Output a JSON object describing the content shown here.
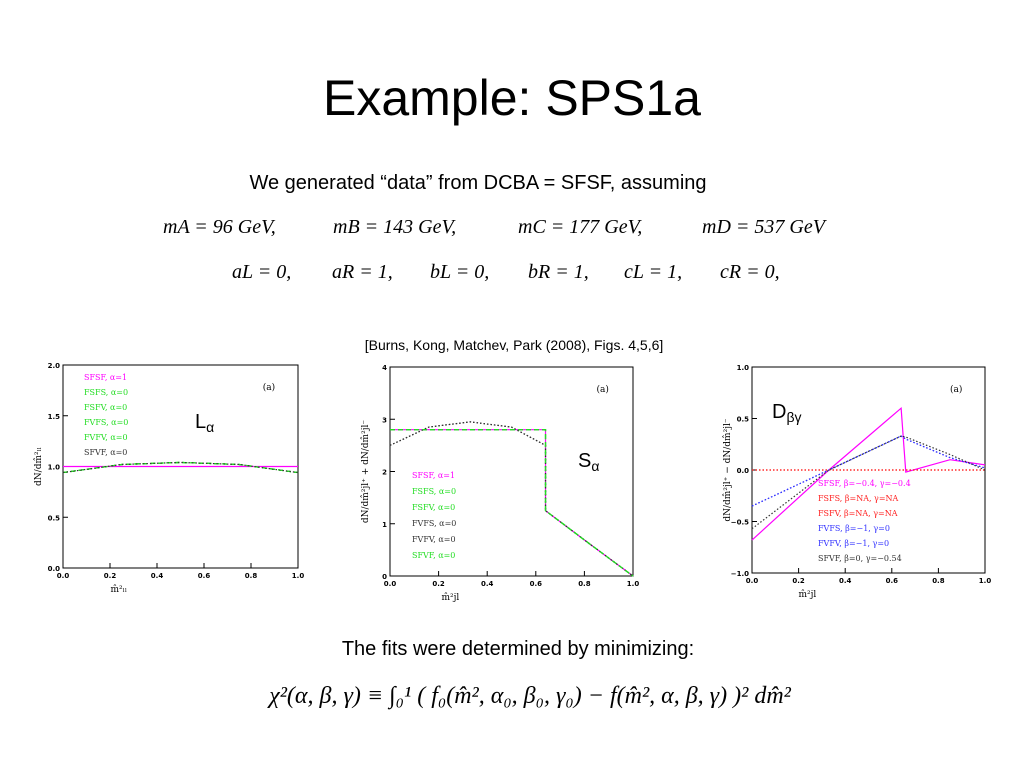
{
  "title": "Example:  SPS1a",
  "intro": "We generated “data” from DCBA = SFSF, assuming",
  "mass_line": [
    "mA = 96 GeV,",
    "mB = 143 GeV,",
    "mC = 177 GeV,",
    "mD = 537 GeV"
  ],
  "coupling_line": [
    "aL = 0,",
    "aR = 1,",
    "bL = 0,",
    "bR = 1,",
    "cL = 1,",
    "cR = 0,"
  ],
  "citation": "[Burns, Kong, Matchev, Park (2008), Figs. 4,5,6]",
  "charts": [
    {
      "type": "line",
      "panel_label": "(a)",
      "overlay_label": {
        "main": "L",
        "sub": "α"
      },
      "xlabel": "m̂²ₗₗ",
      "ylabel": "dN/dm̂²ₗₗ",
      "xlim": [
        0,
        1
      ],
      "xticks": [
        {
          "value": 0,
          "label": "0.0"
        },
        {
          "value": 0.2,
          "label": "0.2"
        },
        {
          "value": 0.4,
          "label": "0.4"
        },
        {
          "value": 0.6,
          "label": "0.6"
        },
        {
          "value": 0.8,
          "label": "0.8"
        },
        {
          "value": 1,
          "label": "1.0"
        }
      ],
      "ylim": [
        0,
        2
      ],
      "yticks": [
        {
          "value": 0,
          "label": "0.0"
        },
        {
          "value": 0.5,
          "label": "0.5"
        },
        {
          "value": 1,
          "label": "1.0"
        },
        {
          "value": 1.5,
          "label": "1.5"
        },
        {
          "value": 2,
          "label": "2.0"
        }
      ],
      "x": [
        0,
        0.25,
        0.5,
        0.75,
        1
      ],
      "series": [
        {
          "name": "SFSF, α=1",
          "color": "#ff00ff",
          "values": [
            1,
            1,
            1,
            1,
            1
          ]
        },
        {
          "name": "FSFS, α=0",
          "color": "#22dd22",
          "style": "dashed",
          "values": [
            0.94,
            1.02,
            1.04,
            1.02,
            0.94
          ]
        },
        {
          "name": "FSFV, α=0",
          "color": "#22dd22",
          "style": "dashed",
          "values": [
            0.94,
            1.02,
            1.04,
            1.02,
            0.94
          ]
        },
        {
          "name": "FVFS, α=0",
          "color": "#22dd22",
          "style": "dashed",
          "values": [
            0.94,
            1.02,
            1.04,
            1.02,
            0.94
          ]
        },
        {
          "name": "FVFV, α=0",
          "color": "#22dd22",
          "style": "dashed",
          "values": [
            0.94,
            1.02,
            1.04,
            1.02,
            0.94
          ]
        },
        {
          "name": "SFVF, α=0",
          "color": "#333333",
          "style": "dotted",
          "values": [
            0.94,
            1.02,
            1.04,
            1.02,
            0.94
          ]
        }
      ]
    },
    {
      "type": "line",
      "panel_label": "(a)",
      "overlay_label": {
        "main": "S",
        "sub": "α"
      },
      "xlabel": "m̂²jl",
      "ylabel": "dN/dm̂²jl⁺ + dN/dm̂²jl⁻",
      "xlim": [
        0,
        1
      ],
      "xticks": [
        {
          "value": 0,
          "label": "0.0"
        },
        {
          "value": 0.2,
          "label": "0.2"
        },
        {
          "value": 0.4,
          "label": "0.4"
        },
        {
          "value": 0.6,
          "label": "0.6"
        },
        {
          "value": 0.8,
          "label": "0.8"
        },
        {
          "value": 1,
          "label": "1.0"
        }
      ],
      "ylim": [
        0,
        4
      ],
      "yticks": [
        0,
        1,
        2,
        3,
        4
      ],
      "x": [
        0,
        0.16,
        0.33,
        0.5,
        0.64,
        0.64,
        0.82,
        1
      ],
      "series": [
        {
          "name": "SFSF, α=1",
          "color": "#ff00ff",
          "values": [
            2.8,
            2.8,
            2.8,
            2.8,
            2.8,
            1.25,
            0.62,
            0
          ]
        },
        {
          "name": "FSFS, α=0",
          "color": "#22dd22",
          "style": "dashed",
          "values": [
            2.8,
            2.8,
            2.8,
            2.8,
            2.8,
            1.25,
            0.62,
            0
          ]
        },
        {
          "name": "FSFV, α=0",
          "color": "#22dd22",
          "style": "dashed",
          "values": [
            2.8,
            2.8,
            2.8,
            2.8,
            2.8,
            1.25,
            0.62,
            0
          ]
        },
        {
          "name": "FVFS, α=0",
          "color": "#333333",
          "style": "dotted",
          "values": [
            2.5,
            2.85,
            2.95,
            2.85,
            2.5,
            1.25,
            0.62,
            0
          ]
        },
        {
          "name": "FVFV, α=0",
          "color": "#333333",
          "style": "dotted",
          "values": [
            2.5,
            2.85,
            2.95,
            2.85,
            2.5,
            1.25,
            0.62,
            0
          ]
        },
        {
          "name": "SFVF, α=0",
          "color": "#22dd22",
          "style": "dashed",
          "values": [
            2.8,
            2.8,
            2.8,
            2.8,
            2.8,
            1.25,
            0.62,
            0
          ]
        }
      ]
    },
    {
      "type": "line",
      "panel_label": "(a)",
      "overlay_label": {
        "main": "D",
        "sub": "βγ"
      },
      "xlabel": "m̂²jl",
      "ylabel": "dN/dm̂²jl⁺ − dN/dm̂²jl⁻",
      "xlim": [
        0,
        1
      ],
      "xticks": [
        {
          "value": 0,
          "label": "0.0"
        },
        {
          "value": 0.2,
          "label": "0.2"
        },
        {
          "value": 0.4,
          "label": "0.4"
        },
        {
          "value": 0.6,
          "label": "0.6"
        },
        {
          "value": 0.8,
          "label": "0.8"
        },
        {
          "value": 1,
          "label": "1.0"
        }
      ],
      "ylim": [
        -1,
        1
      ],
      "yticks": [
        {
          "value": -1,
          "label": "−1.0"
        },
        {
          "value": -0.5,
          "label": "−0.5"
        },
        {
          "value": 0,
          "label": "0.0"
        },
        {
          "value": 0.5,
          "label": "0.5"
        },
        {
          "value": 1,
          "label": "1.0"
        }
      ],
      "x": [
        0,
        0.33,
        0.64,
        0.66,
        0.85,
        1
      ],
      "series": [
        {
          "name": "SFSF, β=−0.4, γ=−0.4",
          "color": "#ff00ff",
          "values": [
            -0.68,
            0,
            0.6,
            -0.02,
            0.1,
            0.05
          ]
        },
        {
          "name": "FSFS, β=NA, γ=NA",
          "color": "#ff2222",
          "style": "dotted",
          "values": [
            0,
            0,
            0,
            0,
            0,
            0
          ]
        },
        {
          "name": "FSFV, β=NA, γ=NA",
          "color": "#ff2222",
          "style": "dotted",
          "values": [
            0,
            0,
            0,
            0,
            0,
            0
          ]
        },
        {
          "name": "FVFS, β=−1, γ=0",
          "color": "#3333ff",
          "style": "dotted",
          "values": [
            -0.35,
            0,
            0.33,
            0.3,
            0.12,
            0.02
          ]
        },
        {
          "name": "FVFV, β=−1, γ=0",
          "color": "#3333ff",
          "style": "dotted",
          "values": [
            -0.35,
            0,
            0.33,
            0.3,
            0.12,
            0.02
          ]
        },
        {
          "name": "SFVF, β=0, γ=−0.54",
          "color": "#333333",
          "style": "dotted",
          "values": [
            -0.57,
            0,
            0.33,
            0.32,
            0.15,
            0
          ]
        }
      ]
    }
  ],
  "fit_text": "The fits were determined by minimizing:",
  "formula": "χ²(α, β, γ) ≡ ∫₀¹ ( f₀(m̂², α₀, β₀, γ₀) − f(m̂², α, β, γ) )² dm̂²"
}
